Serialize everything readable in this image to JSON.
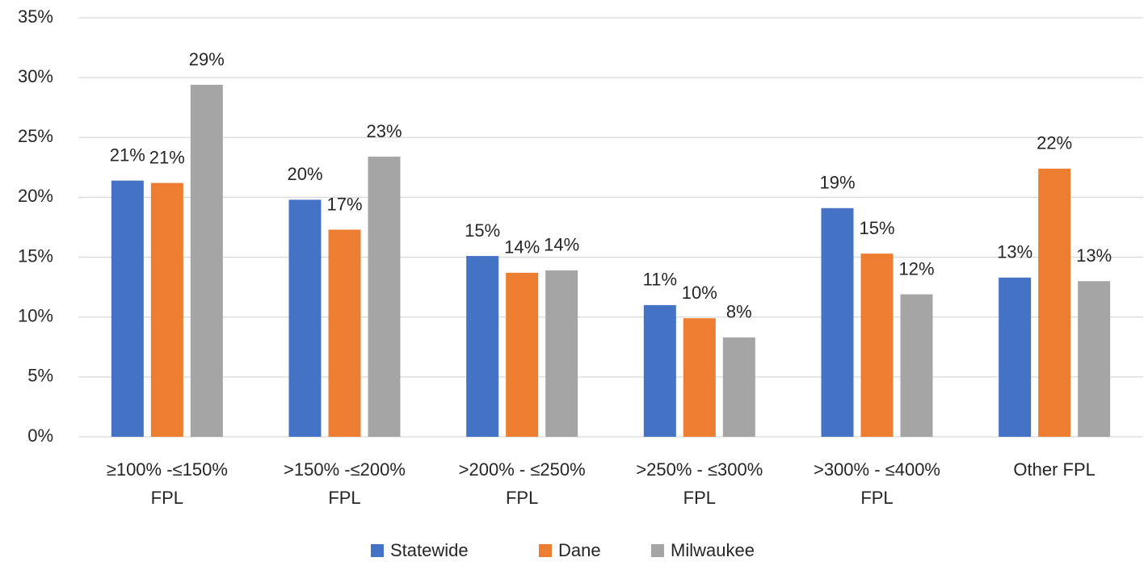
{
  "chart_data": {
    "type": "bar",
    "categories": [
      "≥100% -≤150% FPL",
      ">150% -≤200% FPL",
      ">200% - ≤250% FPL",
      ">250% - ≤300% FPL",
      ">300% - ≤400% FPL",
      "Other FPL"
    ],
    "series": [
      {
        "name": "Statewide",
        "color": "#4472c4",
        "values": [
          21.4,
          19.8,
          15.1,
          11.0,
          19.1,
          13.3
        ],
        "value_labels": [
          "21%",
          "20%",
          "15%",
          "11%",
          "19%",
          "13%"
        ]
      },
      {
        "name": "Dane",
        "color": "#ed7d31",
        "values": [
          21.2,
          17.3,
          13.7,
          9.9,
          15.3,
          22.4
        ],
        "value_labels": [
          "21%",
          "17%",
          "14%",
          "10%",
          "15%",
          "22%"
        ]
      },
      {
        "name": "Milwaukee",
        "color": "#a5a5a5",
        "values": [
          29.4,
          23.4,
          13.9,
          8.3,
          11.9,
          13.0
        ],
        "value_labels": [
          "29%",
          "23%",
          "14%",
          "8%",
          "12%",
          "13%"
        ]
      }
    ],
    "ylim": [
      0,
      35
    ],
    "yticks": [
      {
        "value": 0,
        "label": "0%"
      },
      {
        "value": 5,
        "label": "5%"
      },
      {
        "value": 10,
        "label": "10%"
      },
      {
        "value": 15,
        "label": "15%"
      },
      {
        "value": 20,
        "label": "20%"
      },
      {
        "value": 25,
        "label": "25%"
      },
      {
        "value": 30,
        "label": "30%"
      },
      {
        "value": 35,
        "label": "35%"
      }
    ],
    "grid": true,
    "legend": "bottom"
  }
}
